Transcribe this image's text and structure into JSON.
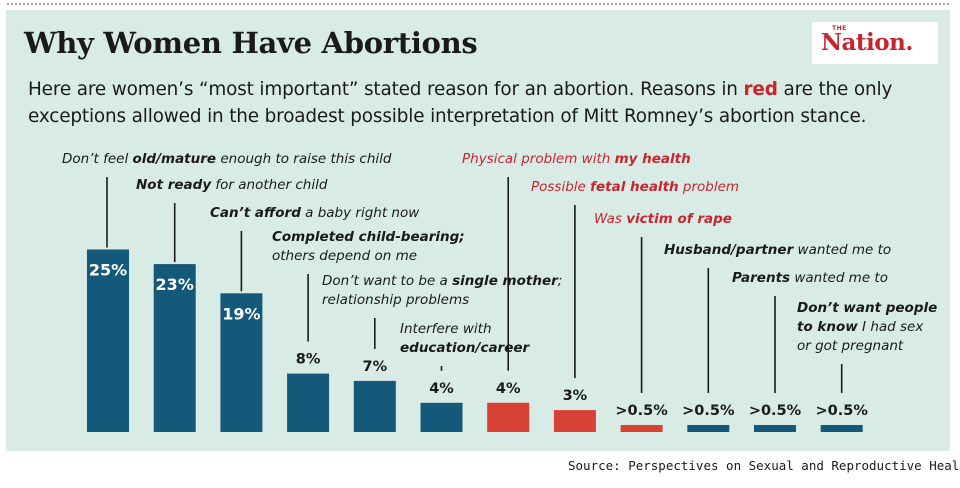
{
  "header": {
    "title": "Why Women Have Abortions",
    "subtitle_before": "Here are women’s “most important” stated reason for an abortion. Reasons in ",
    "subtitle_red": "red",
    "subtitle_after": " are the only exceptions allowed in the broadest possible interpretation of Mitt Romney’s abortion stance."
  },
  "logo": {
    "small": "THE",
    "name": "Nation."
  },
  "source": "Source: Perspectives on Sexual and Reproductive Health",
  "colors": {
    "blue": "#14587a",
    "red": "#d94035",
    "background": "#d9ebe5",
    "red_text": "#c8262e"
  },
  "chart_data": {
    "type": "bar",
    "title": "Why Women Have Abortions",
    "xlabel": "",
    "ylabel": "",
    "ylim": [
      0,
      25
    ],
    "categories": [
      "Don't feel old/mature enough to raise this child",
      "Not ready for another child",
      "Can't afford a baby right now",
      "Completed child-bearing; others depend on me",
      "Don't want to be a single mother; relationship problems",
      "Interfere with education/career",
      "Physical problem with my health",
      "Possible fetal health problem",
      "Was victim of rape",
      "Husband/partner wanted me to",
      "Parents wanted me to",
      "Don't want people to know I had sex or got pregnant"
    ],
    "values": [
      25,
      23,
      19,
      8,
      7,
      4,
      4,
      3,
      0.5,
      0.5,
      0.5,
      0.5
    ],
    "value_labels": [
      "25%",
      "23%",
      "19%",
      "8%",
      "7%",
      "4%",
      "4%",
      "3%",
      ">0.5%",
      ">0.5%",
      ">0.5%",
      ">0.5%"
    ],
    "highlight": [
      false,
      false,
      false,
      false,
      false,
      false,
      true,
      true,
      true,
      false,
      false,
      false
    ],
    "labels": [
      {
        "lines": [
          [
            {
              "t": "Don’t feel ",
              "b": false
            },
            {
              "t": "old/mature",
              "b": true
            },
            {
              "t": " enough to raise this child",
              "b": false
            }
          ]
        ]
      },
      {
        "lines": [
          [
            {
              "t": "Not ready",
              "b": true
            },
            {
              "t": " for another child",
              "b": false
            }
          ]
        ]
      },
      {
        "lines": [
          [
            {
              "t": "Can’t afford",
              "b": true
            },
            {
              "t": " a baby right now",
              "b": false
            }
          ]
        ]
      },
      {
        "lines": [
          [
            {
              "t": "Completed child-bearing;",
              "b": true
            }
          ],
          [
            {
              "t": "others depend on me",
              "b": false
            }
          ]
        ]
      },
      {
        "lines": [
          [
            {
              "t": "Don’t want to be a ",
              "b": false
            },
            {
              "t": "single mother",
              "b": true
            },
            {
              "t": ";",
              "b": false
            }
          ],
          [
            {
              "t": "relationship problems",
              "b": false
            }
          ]
        ]
      },
      {
        "lines": [
          [
            {
              "t": "Interfere with",
              "b": false
            }
          ],
          [
            {
              "t": "education/career",
              "b": true
            }
          ]
        ]
      },
      {
        "lines": [
          [
            {
              "t": "Physical problem with ",
              "b": false
            },
            {
              "t": "my health",
              "b": true
            }
          ]
        ]
      },
      {
        "lines": [
          [
            {
              "t": "Possible ",
              "b": false
            },
            {
              "t": "fetal health",
              "b": true
            },
            {
              "t": " problem",
              "b": false
            }
          ]
        ]
      },
      {
        "lines": [
          [
            {
              "t": "Was ",
              "b": false
            },
            {
              "t": "victim of rape",
              "b": true
            }
          ]
        ]
      },
      {
        "lines": [
          [
            {
              "t": "Husband/partner",
              "b": true
            },
            {
              "t": " wanted me to",
              "b": false
            }
          ]
        ]
      },
      {
        "lines": [
          [
            {
              "t": "Parents",
              "b": true
            },
            {
              "t": " wanted me to",
              "b": false
            }
          ]
        ]
      },
      {
        "lines": [
          [
            {
              "t": "Don’t want people",
              "b": true
            }
          ],
          [
            {
              "t": "to know",
              "b": true
            },
            {
              "t": " I had sex",
              "b": false
            }
          ],
          [
            {
              "t": "or got pregnant",
              "b": false
            }
          ]
        ]
      }
    ]
  }
}
